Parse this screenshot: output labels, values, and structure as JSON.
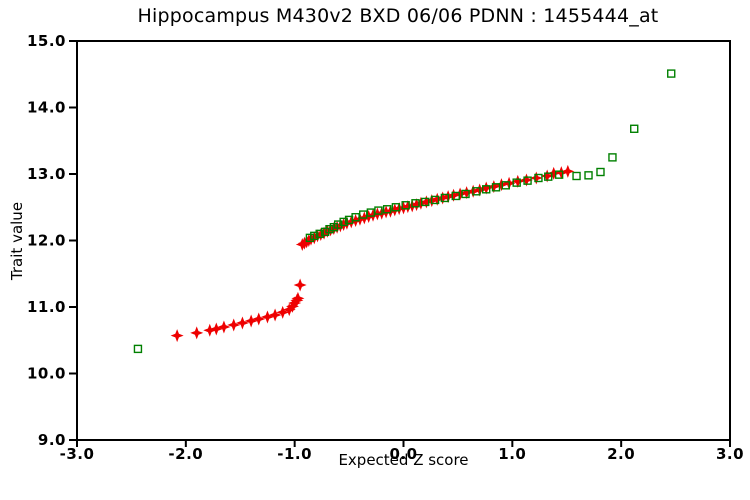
{
  "chart_data": {
    "type": "scatter",
    "title": "Hippocampus M430v2 BXD 06/06 PDNN : 1455444_at",
    "xlabel": "Expected Z score",
    "ylabel": "Trait value",
    "xlim": [
      -3.0,
      3.0
    ],
    "ylim": [
      9.0,
      15.0
    ],
    "grid": false,
    "legend_position": "none",
    "axis_color": "#000000",
    "background_color": "#ffffff",
    "xticks": {
      "values": [
        -3,
        -2,
        -1,
        0,
        1,
        2,
        3
      ],
      "labels": [
        "-3.0",
        "-2.0",
        "-1.0",
        "0.0",
        "1.0",
        "2.0",
        "3.0"
      ]
    },
    "yticks": {
      "values": [
        9,
        10,
        11,
        12,
        13,
        14,
        15
      ],
      "labels": [
        "9.0",
        "10.0",
        "11.0",
        "12.0",
        "13.0",
        "14.0",
        "15.0"
      ]
    },
    "series": [
      {
        "name": "dataset-samples-green-squares",
        "marker": "open-square",
        "color": "#008000",
        "points": [
          [
            -2.44,
            10.37
          ],
          [
            -0.86,
            12.04
          ],
          [
            -0.82,
            12.07
          ],
          [
            -0.77,
            12.1
          ],
          [
            -0.72,
            12.13
          ],
          [
            -0.68,
            12.17
          ],
          [
            -0.64,
            12.2
          ],
          [
            -0.6,
            12.24
          ],
          [
            -0.55,
            12.28
          ],
          [
            -0.5,
            12.31
          ],
          [
            -0.44,
            12.35
          ],
          [
            -0.37,
            12.39
          ],
          [
            -0.3,
            12.42
          ],
          [
            -0.23,
            12.45
          ],
          [
            -0.15,
            12.47
          ],
          [
            -0.07,
            12.5
          ],
          [
            0.02,
            12.53
          ],
          [
            0.11,
            12.56
          ],
          [
            0.2,
            12.58
          ],
          [
            0.29,
            12.61
          ],
          [
            0.38,
            12.64
          ],
          [
            0.48,
            12.67
          ],
          [
            0.57,
            12.7
          ],
          [
            0.67,
            12.74
          ],
          [
            0.76,
            12.77
          ],
          [
            0.85,
            12.8
          ],
          [
            0.94,
            12.83
          ],
          [
            1.04,
            12.87
          ],
          [
            1.14,
            12.9
          ],
          [
            1.24,
            12.94
          ],
          [
            1.33,
            12.96
          ],
          [
            1.43,
            12.99
          ],
          [
            1.59,
            12.97
          ],
          [
            1.7,
            12.98
          ],
          [
            1.81,
            13.03
          ],
          [
            1.92,
            13.25
          ],
          [
            2.12,
            13.68
          ],
          [
            2.46,
            14.51
          ]
        ]
      },
      {
        "name": "trait-values-red-diamonds",
        "marker": "four-point-star",
        "color": "#ee0000",
        "points": [
          [
            -2.08,
            10.57
          ],
          [
            -1.9,
            10.61
          ],
          [
            -1.78,
            10.65
          ],
          [
            -1.72,
            10.67
          ],
          [
            -1.65,
            10.7
          ],
          [
            -1.56,
            10.73
          ],
          [
            -1.48,
            10.76
          ],
          [
            -1.4,
            10.79
          ],
          [
            -1.33,
            10.82
          ],
          [
            -1.25,
            10.85
          ],
          [
            -1.18,
            10.88
          ],
          [
            -1.11,
            10.92
          ],
          [
            -1.05,
            10.96
          ],
          [
            -1.02,
            11.01
          ],
          [
            -1.0,
            11.06
          ],
          [
            -0.98,
            11.1
          ],
          [
            -0.97,
            11.13
          ],
          [
            -0.95,
            11.33
          ],
          [
            -0.93,
            11.94
          ],
          [
            -0.91,
            11.96
          ],
          [
            -0.89,
            11.98
          ],
          [
            -0.87,
            12.0
          ],
          [
            -0.85,
            12.02
          ],
          [
            -0.82,
            12.04
          ],
          [
            -0.79,
            12.07
          ],
          [
            -0.76,
            12.09
          ],
          [
            -0.73,
            12.11
          ],
          [
            -0.7,
            12.14
          ],
          [
            -0.67,
            12.16
          ],
          [
            -0.64,
            12.18
          ],
          [
            -0.61,
            12.2
          ],
          [
            -0.58,
            12.22
          ],
          [
            -0.55,
            12.24
          ],
          [
            -0.52,
            12.26
          ],
          [
            -0.48,
            12.28
          ],
          [
            -0.44,
            12.3
          ],
          [
            -0.4,
            12.32
          ],
          [
            -0.36,
            12.34
          ],
          [
            -0.32,
            12.36
          ],
          [
            -0.28,
            12.38
          ],
          [
            -0.24,
            12.4
          ],
          [
            -0.2,
            12.41
          ],
          [
            -0.16,
            12.43
          ],
          [
            -0.12,
            12.44
          ],
          [
            -0.08,
            12.46
          ],
          [
            -0.04,
            12.48
          ],
          [
            0.0,
            12.49
          ],
          [
            0.04,
            12.51
          ],
          [
            0.08,
            12.52
          ],
          [
            0.12,
            12.54
          ],
          [
            0.16,
            12.56
          ],
          [
            0.21,
            12.58
          ],
          [
            0.26,
            12.6
          ],
          [
            0.31,
            12.62
          ],
          [
            0.36,
            12.64
          ],
          [
            0.41,
            12.66
          ],
          [
            0.46,
            12.68
          ],
          [
            0.52,
            12.7
          ],
          [
            0.58,
            12.72
          ],
          [
            0.64,
            12.74
          ],
          [
            0.7,
            12.76
          ],
          [
            0.76,
            12.79
          ],
          [
            0.83,
            12.81
          ],
          [
            0.9,
            12.84
          ],
          [
            0.97,
            12.86
          ],
          [
            1.05,
            12.89
          ],
          [
            1.13,
            12.91
          ],
          [
            1.22,
            12.94
          ],
          [
            1.32,
            12.97
          ],
          [
            1.38,
            13.01
          ],
          [
            1.45,
            13.02
          ],
          [
            1.51,
            13.04
          ]
        ]
      }
    ]
  }
}
